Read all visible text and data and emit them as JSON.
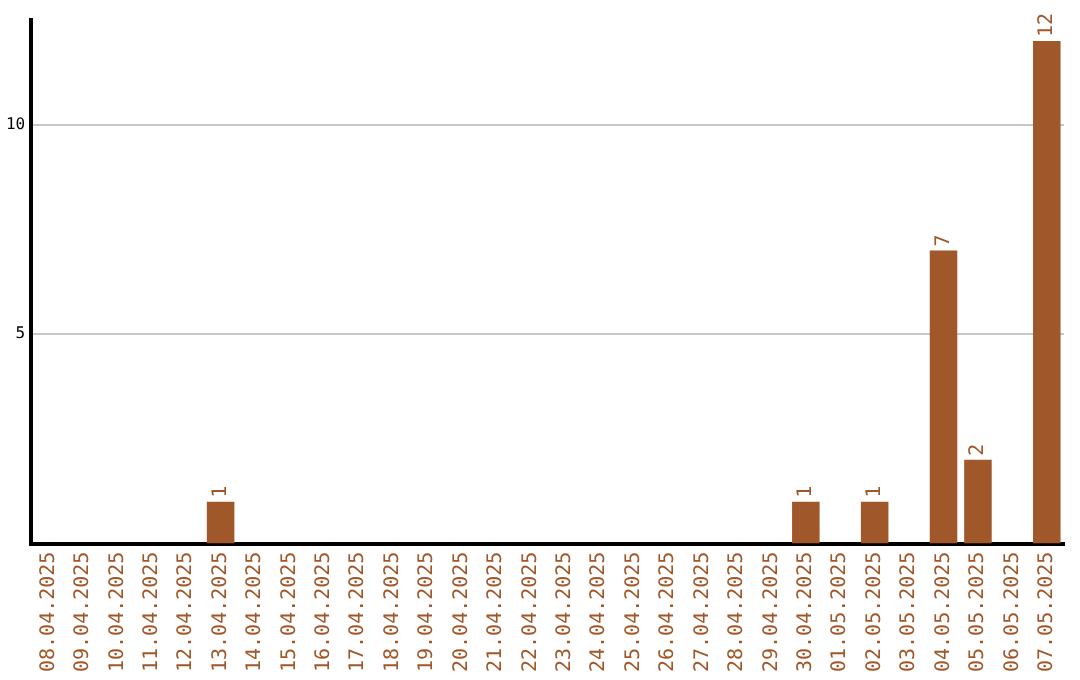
{
  "chart_data": {
    "type": "bar",
    "categories": [
      "08.04.2025",
      "09.04.2025",
      "10.04.2025",
      "11.04.2025",
      "12.04.2025",
      "13.04.2025",
      "14.04.2025",
      "15.04.2025",
      "16.04.2025",
      "17.04.2025",
      "18.04.2025",
      "19.04.2025",
      "20.04.2025",
      "21.04.2025",
      "22.04.2025",
      "23.04.2025",
      "24.04.2025",
      "25.04.2025",
      "26.04.2025",
      "27.04.2025",
      "28.04.2025",
      "29.04.2025",
      "30.04.2025",
      "01.05.2025",
      "02.05.2025",
      "03.05.2025",
      "04.05.2025",
      "05.05.2025",
      "06.05.2025",
      "07.05.2025"
    ],
    "values": [
      0,
      0,
      0,
      0,
      0,
      1,
      0,
      0,
      0,
      0,
      0,
      0,
      0,
      0,
      0,
      0,
      0,
      0,
      0,
      0,
      0,
      0,
      1,
      0,
      1,
      0,
      7,
      2,
      0,
      12
    ],
    "value_labels": [
      null,
      null,
      null,
      null,
      null,
      "1",
      null,
      null,
      null,
      null,
      null,
      null,
      null,
      null,
      null,
      null,
      null,
      null,
      null,
      null,
      null,
      null,
      "1",
      null,
      "1",
      null,
      "7",
      "2",
      null,
      "12"
    ],
    "color": "#a0582a",
    "ylim": [
      0,
      12.5
    ],
    "yticks": [
      5,
      10
    ],
    "grid": "y",
    "legend": false
  }
}
